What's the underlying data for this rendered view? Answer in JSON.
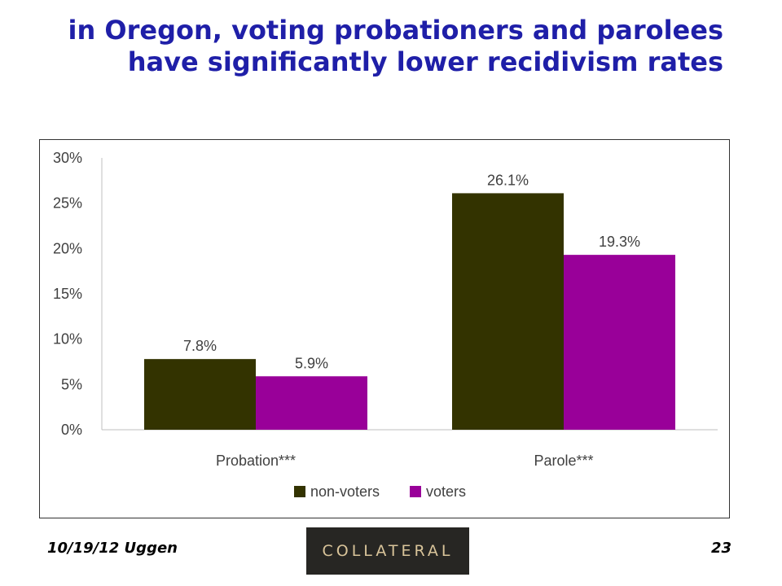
{
  "slide": {
    "title_line1": "in Oregon, voting probationers and parolees",
    "title_line2": "have significantly lower recidivism rates"
  },
  "footer": {
    "left_text": "10/19/12 Uggen",
    "logo_text": "COLLATERAL",
    "page_number": "23"
  },
  "colors": {
    "title": "#1f1fa8",
    "non_voters": "#333300",
    "voters": "#990099",
    "logo_bg": "#272623",
    "logo_text": "#d9c49a"
  },
  "chart_data": {
    "type": "bar",
    "categories": [
      "Probation***",
      "Parole***"
    ],
    "series": [
      {
        "name": "non-voters",
        "values": [
          7.8,
          26.1
        ],
        "labels": [
          "7.8%",
          "26.1%"
        ]
      },
      {
        "name": "voters",
        "values": [
          5.9,
          19.3
        ],
        "labels": [
          "5.9%",
          "19.3%"
        ]
      }
    ],
    "y_ticks": [
      0,
      5,
      10,
      15,
      20,
      25,
      30
    ],
    "y_tick_labels": [
      "0%",
      "5%",
      "10%",
      "15%",
      "20%",
      "25%",
      "30%"
    ],
    "ylim": [
      0,
      30
    ],
    "xlabel": "",
    "ylabel": "",
    "grid": false,
    "legend_position": "bottom"
  }
}
